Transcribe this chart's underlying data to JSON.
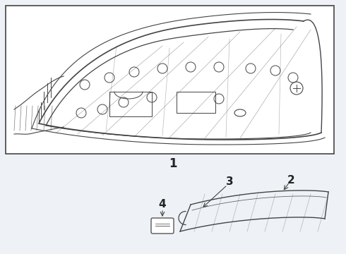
{
  "bg_color": "#eef2f7",
  "box_bg": "#ffffff",
  "line_color": "#444444",
  "part_labels": [
    "1",
    "2",
    "3",
    "4"
  ]
}
